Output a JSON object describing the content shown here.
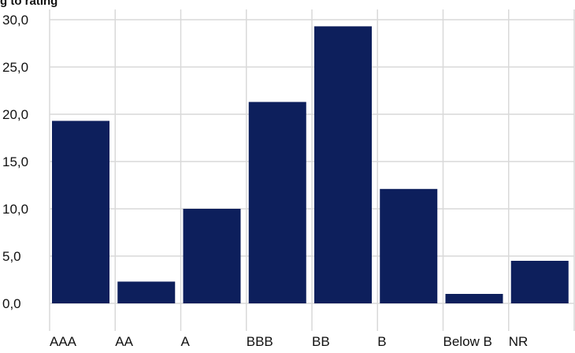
{
  "chart_data": {
    "type": "bar",
    "title": "g to rating",
    "xlabel": "",
    "ylabel": "",
    "categories": [
      "AAA",
      "AA",
      "A",
      "BBB",
      "BB",
      "B",
      "Below B",
      "NR"
    ],
    "values": [
      19.3,
      2.3,
      10.0,
      21.3,
      29.3,
      12.1,
      1.0,
      4.5
    ],
    "ylim": [
      0,
      30
    ],
    "yticks": [
      "0,0",
      "5,0",
      "10,0",
      "15,0",
      "20,0",
      "25,0",
      "30,0"
    ],
    "grid": true,
    "legend": "none",
    "colors": {
      "bar": "#0d1f5c",
      "grid": "#d9d9d9"
    }
  }
}
